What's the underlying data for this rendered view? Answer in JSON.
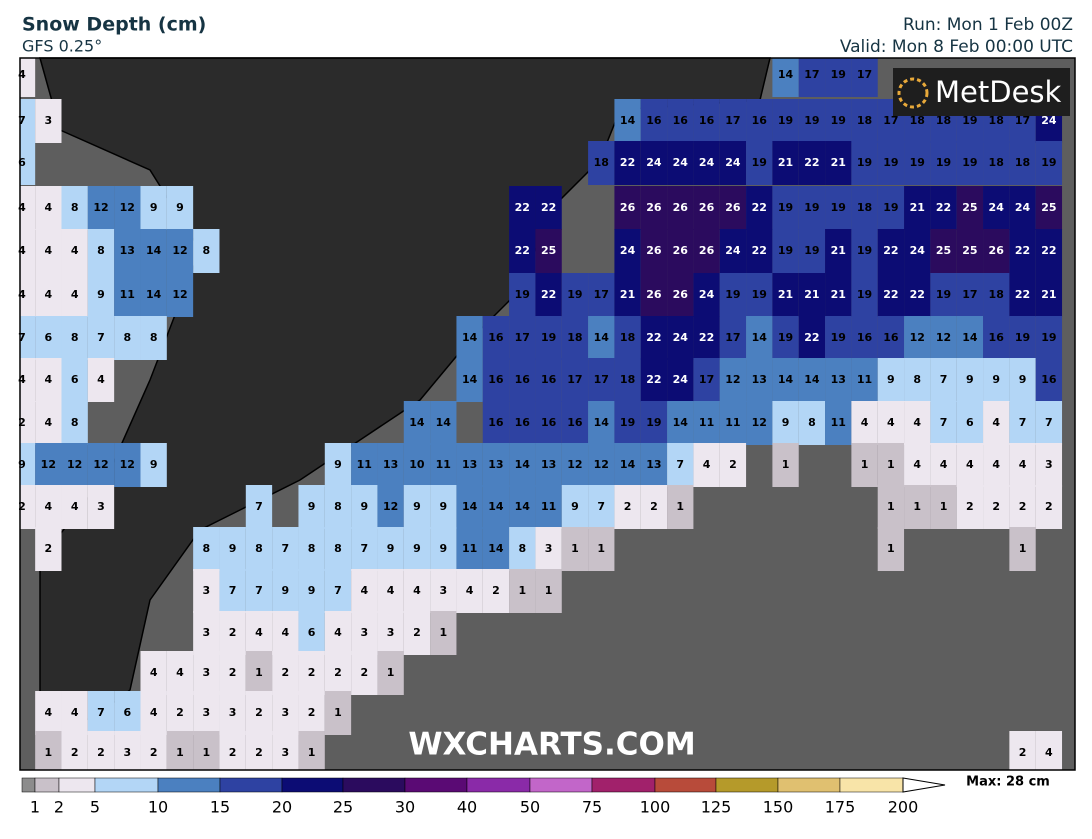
{
  "header": {
    "title": "Snow Depth (cm)",
    "model": "GFS 0.25°",
    "run": "Run: Mon 1 Feb 00Z",
    "valid": "Valid: Mon 8 Feb 00:00 UTC"
  },
  "logo": "MetDesk",
  "watermark": "WXCHARTS.COM",
  "max_label": "Max: 28 cm",
  "grid": {
    "rows": [
      [
        4,
        null,
        null,
        null,
        null,
        null,
        null,
        null,
        null,
        null,
        null,
        null,
        null,
        null,
        null,
        null,
        null,
        null,
        null,
        null,
        null,
        null,
        null,
        null,
        null,
        null,
        null,
        null,
        null,
        14,
        17,
        19,
        17,
        null,
        null,
        null,
        null,
        null,
        null,
        null
      ],
      [
        7,
        3,
        null,
        null,
        null,
        null,
        null,
        null,
        null,
        null,
        null,
        null,
        null,
        null,
        null,
        null,
        null,
        null,
        null,
        null,
        null,
        null,
        null,
        14,
        16,
        16,
        16,
        17,
        16,
        19,
        19,
        19,
        18,
        17,
        18,
        18,
        19,
        18,
        17,
        24
      ],
      [
        6,
        null,
        null,
        null,
        null,
        null,
        null,
        null,
        null,
        null,
        null,
        null,
        null,
        null,
        null,
        null,
        null,
        null,
        null,
        null,
        null,
        null,
        18,
        22,
        24,
        24,
        24,
        24,
        19,
        21,
        22,
        21,
        19,
        19,
        19,
        19,
        19,
        18,
        18,
        19
      ],
      [
        4,
        4,
        8,
        12,
        12,
        9,
        9,
        null,
        null,
        null,
        null,
        null,
        null,
        null,
        null,
        null,
        null,
        null,
        null,
        22,
        22,
        null,
        null,
        26,
        26,
        26,
        26,
        26,
        22,
        19,
        19,
        19,
        18,
        19,
        21,
        22,
        25,
        24,
        24,
        25
      ],
      [
        4,
        4,
        4,
        8,
        13,
        14,
        12,
        8,
        null,
        null,
        null,
        null,
        null,
        null,
        null,
        null,
        null,
        null,
        null,
        22,
        25,
        null,
        null,
        24,
        26,
        26,
        26,
        24,
        22,
        19,
        19,
        21,
        19,
        22,
        24,
        25,
        25,
        26,
        22,
        22
      ],
      [
        4,
        4,
        4,
        9,
        11,
        14,
        12,
        null,
        null,
        null,
        null,
        null,
        null,
        null,
        null,
        null,
        null,
        null,
        null,
        19,
        22,
        19,
        17,
        21,
        26,
        26,
        24,
        19,
        19,
        21,
        21,
        21,
        19,
        22,
        22,
        19,
        17,
        18,
        22,
        21
      ],
      [
        7,
        6,
        8,
        7,
        8,
        8,
        null,
        null,
        null,
        null,
        null,
        null,
        null,
        null,
        null,
        null,
        null,
        14,
        16,
        17,
        19,
        18,
        14,
        18,
        22,
        24,
        22,
        17,
        14,
        19,
        22,
        19,
        16,
        16,
        12,
        12,
        14,
        16,
        19,
        19
      ],
      [
        4,
        4,
        6,
        4,
        null,
        null,
        null,
        null,
        null,
        null,
        null,
        null,
        null,
        null,
        null,
        null,
        null,
        14,
        16,
        16,
        16,
        17,
        17,
        18,
        22,
        24,
        17,
        12,
        13,
        14,
        14,
        13,
        11,
        9,
        8,
        7,
        9,
        9,
        9,
        16
      ],
      [
        2,
        4,
        8,
        null,
        null,
        null,
        null,
        null,
        null,
        null,
        null,
        null,
        null,
        null,
        null,
        14,
        14,
        null,
        16,
        16,
        16,
        16,
        14,
        19,
        19,
        14,
        11,
        11,
        12,
        9,
        8,
        11,
        4,
        4,
        4,
        7,
        6,
        4,
        7,
        7
      ],
      [
        9,
        12,
        12,
        12,
        12,
        9,
        null,
        null,
        null,
        null,
        null,
        null,
        9,
        11,
        13,
        10,
        11,
        13,
        13,
        14,
        13,
        12,
        12,
        14,
        13,
        7,
        4,
        2,
        null,
        1,
        null,
        null,
        1,
        1,
        4,
        4,
        4,
        4,
        4,
        3
      ],
      [
        2,
        4,
        4,
        3,
        null,
        null,
        null,
        null,
        null,
        7,
        null,
        9,
        8,
        9,
        12,
        9,
        9,
        14,
        14,
        14,
        11,
        9,
        7,
        2,
        2,
        1,
        null,
        null,
        null,
        null,
        null,
        null,
        null,
        1,
        1,
        1,
        2,
        2,
        2,
        2
      ],
      [
        null,
        2,
        null,
        null,
        null,
        null,
        null,
        8,
        9,
        8,
        7,
        8,
        8,
        7,
        9,
        9,
        9,
        11,
        14,
        8,
        3,
        1,
        1,
        null,
        null,
        null,
        null,
        null,
        null,
        null,
        null,
        null,
        null,
        1,
        null,
        null,
        null,
        null,
        1,
        null
      ],
      [
        null,
        null,
        null,
        null,
        null,
        null,
        null,
        3,
        7,
        7,
        9,
        9,
        7,
        4,
        4,
        4,
        3,
        4,
        2,
        1,
        1,
        null,
        null,
        null,
        null,
        null,
        null,
        null,
        null,
        null,
        null,
        null,
        null,
        null,
        null,
        null,
        null,
        null,
        null,
        null
      ],
      [
        null,
        null,
        null,
        null,
        null,
        null,
        null,
        3,
        2,
        4,
        4,
        6,
        4,
        3,
        3,
        2,
        1,
        null,
        null,
        null,
        null,
        null,
        null,
        null,
        null,
        null,
        null,
        null,
        null,
        null,
        null,
        null,
        null,
        null,
        null,
        null,
        null,
        null,
        null,
        null
      ],
      [
        null,
        null,
        null,
        null,
        null,
        4,
        4,
        3,
        2,
        1,
        2,
        2,
        2,
        2,
        1,
        null,
        null,
        null,
        null,
        null,
        null,
        null,
        null,
        null,
        null,
        null,
        null,
        null,
        null,
        null,
        null,
        null,
        null,
        null,
        null,
        null,
        null,
        null,
        null,
        null
      ],
      [
        null,
        4,
        4,
        7,
        6,
        4,
        2,
        3,
        3,
        2,
        3,
        2,
        1,
        null,
        null,
        null,
        null,
        null,
        null,
        null,
        null,
        null,
        null,
        null,
        null,
        null,
        null,
        null,
        null,
        null,
        null,
        null,
        null,
        null,
        null,
        null,
        null,
        null,
        null,
        null
      ],
      [
        null,
        1,
        2,
        2,
        3,
        2,
        1,
        1,
        2,
        2,
        3,
        1,
        null,
        null,
        null,
        null,
        null,
        null,
        null,
        null,
        null,
        null,
        null,
        null,
        null,
        null,
        null,
        null,
        null,
        null,
        null,
        null,
        null,
        null,
        null,
        null,
        null,
        null,
        2,
        4
      ]
    ]
  },
  "colorbar": {
    "ticks": [
      1,
      2,
      5,
      10,
      15,
      20,
      25,
      30,
      40,
      50,
      75,
      100,
      125,
      150,
      175,
      200
    ],
    "colors": [
      "#8c8c8c",
      "#c9c1c9",
      "#ede7ef",
      "#b3d6f6",
      "#4b80c0",
      "#2e42a2",
      "#0c0c74",
      "#2b0b5e",
      "#5a0a74",
      "#8a2aa8",
      "#c266c9",
      "#a1216b",
      "#b84b3a",
      "#b59a2a",
      "#e0c070",
      "#f8e4a8"
    ]
  }
}
